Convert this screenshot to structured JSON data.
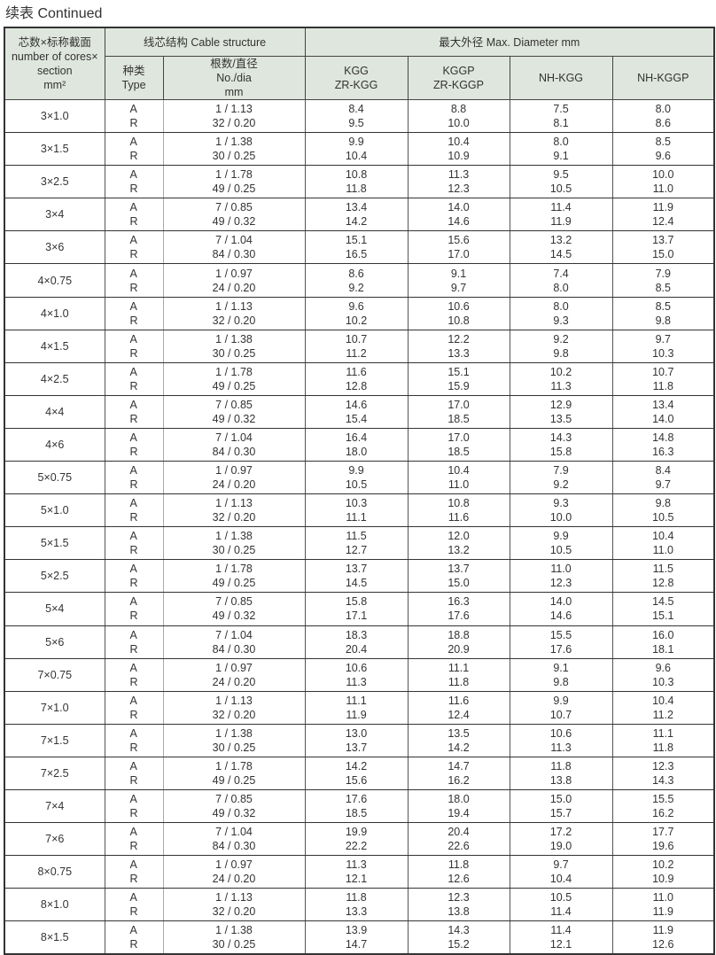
{
  "title": "续表  Continued",
  "header": {
    "section": [
      "芯数×标称截面",
      "number of cores×",
      "section",
      "mm²"
    ],
    "structure": "线芯结构 Cable structure",
    "diameter": "最大外径 Max. Diameter  mm",
    "type": [
      "种类",
      "Type"
    ],
    "nodia": [
      "根数/直径",
      "No./dia",
      "mm"
    ],
    "cols": [
      [
        "KGG",
        "ZR-KGG"
      ],
      [
        "KGGP",
        "ZR-KGGP"
      ],
      [
        "NH-KGG"
      ],
      [
        "NH-KGGP"
      ]
    ]
  },
  "rows": [
    {
      "section": "3×1.0",
      "types": [
        "A",
        "R"
      ],
      "structure": [
        "1 / 1.13",
        "32 / 0.20"
      ],
      "d": [
        [
          "8.4",
          "9.5"
        ],
        [
          "8.8",
          "10.0"
        ],
        [
          "7.5",
          "8.1"
        ],
        [
          "8.0",
          "8.6"
        ]
      ]
    },
    {
      "section": "3×1.5",
      "types": [
        "A",
        "R"
      ],
      "structure": [
        "1 / 1.38",
        "30 / 0.25"
      ],
      "d": [
        [
          "9.9",
          "10.4"
        ],
        [
          "10.4",
          "10.9"
        ],
        [
          "8.0",
          "9.1"
        ],
        [
          "8.5",
          "9.6"
        ]
      ]
    },
    {
      "section": "3×2.5",
      "types": [
        "A",
        "R"
      ],
      "structure": [
        "1 / 1.78",
        "49 / 0.25"
      ],
      "d": [
        [
          "10.8",
          "11.8"
        ],
        [
          "11.3",
          "12.3"
        ],
        [
          "9.5",
          "10.5"
        ],
        [
          "10.0",
          "11.0"
        ]
      ]
    },
    {
      "section": "3×4",
      "types": [
        "A",
        "R"
      ],
      "structure": [
        "7 / 0.85",
        "49 / 0.32"
      ],
      "d": [
        [
          "13.4",
          "14.2"
        ],
        [
          "14.0",
          "14.6"
        ],
        [
          "11.4",
          "11.9"
        ],
        [
          "11.9",
          "12.4"
        ]
      ]
    },
    {
      "section": "3×6",
      "types": [
        "A",
        "R"
      ],
      "structure": [
        "7 / 1.04",
        "84 / 0.30"
      ],
      "d": [
        [
          "15.1",
          "16.5"
        ],
        [
          "15.6",
          "17.0"
        ],
        [
          "13.2",
          "14.5"
        ],
        [
          "13.7",
          "15.0"
        ]
      ]
    },
    {
      "section": "4×0.75",
      "types": [
        "A",
        "R"
      ],
      "structure": [
        "1 / 0.97",
        "24 / 0.20"
      ],
      "d": [
        [
          "8.6",
          "9.2"
        ],
        [
          "9.1",
          "9.7"
        ],
        [
          "7.4",
          "8.0"
        ],
        [
          "7.9",
          "8.5"
        ]
      ]
    },
    {
      "section": "4×1.0",
      "types": [
        "A",
        "R"
      ],
      "structure": [
        "1 / 1.13",
        "32 / 0.20"
      ],
      "d": [
        [
          "9.6",
          "10.2"
        ],
        [
          "10.6",
          "10.8"
        ],
        [
          "8.0",
          "9.3"
        ],
        [
          "8.5",
          "9.8"
        ]
      ]
    },
    {
      "section": "4×1.5",
      "types": [
        "A",
        "R"
      ],
      "structure": [
        "1 / 1.38",
        "30 / 0.25"
      ],
      "d": [
        [
          "10.7",
          "11.2"
        ],
        [
          "12.2",
          "13.3"
        ],
        [
          "9.2",
          "9.8"
        ],
        [
          "9.7",
          "10.3"
        ]
      ]
    },
    {
      "section": "4×2.5",
      "types": [
        "A",
        "R"
      ],
      "structure": [
        "1 / 1.78",
        "49 / 0.25"
      ],
      "d": [
        [
          "11.6",
          "12.8"
        ],
        [
          "15.1",
          "15.9"
        ],
        [
          "10.2",
          "11.3"
        ],
        [
          "10.7",
          "11.8"
        ]
      ]
    },
    {
      "section": "4×4",
      "types": [
        "A",
        "R"
      ],
      "structure": [
        "7 / 0.85",
        "49 / 0.32"
      ],
      "d": [
        [
          "14.6",
          "15.4"
        ],
        [
          "17.0",
          "18.5"
        ],
        [
          "12.9",
          "13.5"
        ],
        [
          "13.4",
          "14.0"
        ]
      ]
    },
    {
      "section": "4×6",
      "types": [
        "A",
        "R"
      ],
      "structure": [
        "7 / 1.04",
        "84 / 0.30"
      ],
      "d": [
        [
          "16.4",
          "18.0"
        ],
        [
          "17.0",
          "18.5"
        ],
        [
          "14.3",
          "15.8"
        ],
        [
          "14.8",
          "16.3"
        ]
      ]
    },
    {
      "section": "5×0.75",
      "types": [
        "A",
        "R"
      ],
      "structure": [
        "1 / 0.97",
        "24 / 0.20"
      ],
      "d": [
        [
          "9.9",
          "10.5"
        ],
        [
          "10.4",
          "11.0"
        ],
        [
          "7.9",
          "9.2"
        ],
        [
          "8.4",
          "9.7"
        ]
      ]
    },
    {
      "section": "5×1.0",
      "types": [
        "A",
        "R"
      ],
      "structure": [
        "1 / 1.13",
        "32 / 0.20"
      ],
      "d": [
        [
          "10.3",
          "11.1"
        ],
        [
          "10.8",
          "11.6"
        ],
        [
          "9.3",
          "10.0"
        ],
        [
          "9.8",
          "10.5"
        ]
      ]
    },
    {
      "section": "5×1.5",
      "types": [
        "A",
        "R"
      ],
      "structure": [
        "1 / 1.38",
        "30 / 0.25"
      ],
      "d": [
        [
          "11.5",
          "12.7"
        ],
        [
          "12.0",
          "13.2"
        ],
        [
          "9.9",
          "10.5"
        ],
        [
          "10.4",
          "11.0"
        ]
      ]
    },
    {
      "section": "5×2.5",
      "types": [
        "A",
        "R"
      ],
      "structure": [
        "1 / 1.78",
        "49 / 0.25"
      ],
      "d": [
        [
          "13.7",
          "14.5"
        ],
        [
          "13.7",
          "15.0"
        ],
        [
          "11.0",
          "12.3"
        ],
        [
          "11.5",
          "12.8"
        ]
      ]
    },
    {
      "section": "5×4",
      "types": [
        "A",
        "R"
      ],
      "structure": [
        "7 / 0.85",
        "49 / 0.32"
      ],
      "d": [
        [
          "15.8",
          "17.1"
        ],
        [
          "16.3",
          "17.6"
        ],
        [
          "14.0",
          "14.6"
        ],
        [
          "14.5",
          "15.1"
        ]
      ]
    },
    {
      "section": "5×6",
      "types": [
        "A",
        "R"
      ],
      "structure": [
        "7 / 1.04",
        "84 / 0.30"
      ],
      "d": [
        [
          "18.3",
          "20.4"
        ],
        [
          "18.8",
          "20.9"
        ],
        [
          "15.5",
          "17.6"
        ],
        [
          "16.0",
          "18.1"
        ]
      ]
    },
    {
      "section": "7×0.75",
      "types": [
        "A",
        "R"
      ],
      "structure": [
        "1 / 0.97",
        "24 / 0.20"
      ],
      "d": [
        [
          "10.6",
          "11.3"
        ],
        [
          "11.1",
          "11.8"
        ],
        [
          "9.1",
          "9.8"
        ],
        [
          "9.6",
          "10.3"
        ]
      ]
    },
    {
      "section": "7×1.0",
      "types": [
        "A",
        "R"
      ],
      "structure": [
        "1 / 1.13",
        "32 / 0.20"
      ],
      "d": [
        [
          "11.1",
          "11.9"
        ],
        [
          "11.6",
          "12.4"
        ],
        [
          "9.9",
          "10.7"
        ],
        [
          "10.4",
          "11.2"
        ]
      ]
    },
    {
      "section": "7×1.5",
      "types": [
        "A",
        "R"
      ],
      "structure": [
        "1 / 1.38",
        "30 / 0.25"
      ],
      "d": [
        [
          "13.0",
          "13.7"
        ],
        [
          "13.5",
          "14.2"
        ],
        [
          "10.6",
          "11.3"
        ],
        [
          "11.1",
          "11.8"
        ]
      ]
    },
    {
      "section": "7×2.5",
      "types": [
        "A",
        "R"
      ],
      "structure": [
        "1 / 1.78",
        "49 / 0.25"
      ],
      "d": [
        [
          "14.2",
          "15.6"
        ],
        [
          "14.7",
          "16.2"
        ],
        [
          "11.8",
          "13.8"
        ],
        [
          "12.3",
          "14.3"
        ]
      ]
    },
    {
      "section": "7×4",
      "types": [
        "A",
        "R"
      ],
      "structure": [
        "7 / 0.85",
        "49 / 0.32"
      ],
      "d": [
        [
          "17.6",
          "18.5"
        ],
        [
          "18.0",
          "19.4"
        ],
        [
          "15.0",
          "15.7"
        ],
        [
          "15.5",
          "16.2"
        ]
      ]
    },
    {
      "section": "7×6",
      "types": [
        "A",
        "R"
      ],
      "structure": [
        "7 / 1.04",
        "84 / 0.30"
      ],
      "d": [
        [
          "19.9",
          "22.2"
        ],
        [
          "20.4",
          "22.6"
        ],
        [
          "17.2",
          "19.0"
        ],
        [
          "17.7",
          "19.6"
        ]
      ]
    },
    {
      "section": "8×0.75",
      "types": [
        "A",
        "R"
      ],
      "structure": [
        "1 / 0.97",
        "24 / 0.20"
      ],
      "d": [
        [
          "11.3",
          "12.1"
        ],
        [
          "11.8",
          "12.6"
        ],
        [
          "9.7",
          "10.4"
        ],
        [
          "10.2",
          "10.9"
        ]
      ]
    },
    {
      "section": "8×1.0",
      "types": [
        "A",
        "R"
      ],
      "structure": [
        "1 / 1.13",
        "32 / 0.20"
      ],
      "d": [
        [
          "11.8",
          "13.3"
        ],
        [
          "12.3",
          "13.8"
        ],
        [
          "10.5",
          "11.4"
        ],
        [
          "11.0",
          "11.9"
        ]
      ]
    },
    {
      "section": "8×1.5",
      "types": [
        "A",
        "R"
      ],
      "structure": [
        "1 / 1.38",
        "30 / 0.25"
      ],
      "d": [
        [
          "13.9",
          "14.7"
        ],
        [
          "14.3",
          "15.2"
        ],
        [
          "11.4",
          "12.1"
        ],
        [
          "11.9",
          "12.6"
        ]
      ]
    }
  ]
}
